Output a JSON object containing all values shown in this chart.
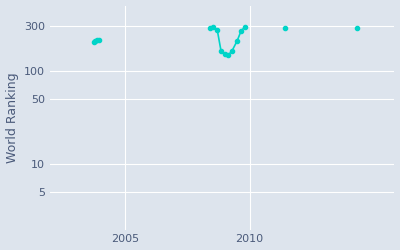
{
  "ylabel": "World Ranking",
  "bg_color": "#dde4ed",
  "line_color": "#00d4c8",
  "grid_color": "#ffffff",
  "data_segments": [
    {
      "x": [
        2003.75,
        2003.82,
        2003.88,
        2003.95
      ],
      "y": [
        205,
        210,
        215,
        212
      ]
    },
    {
      "x": [
        2008.4,
        2008.55,
        2008.7,
        2008.85,
        2009.0,
        2009.15,
        2009.3,
        2009.5,
        2009.65,
        2009.8
      ],
      "y": [
        288,
        292,
        275,
        165,
        150,
        148,
        165,
        210,
        265,
        295
      ]
    },
    {
      "x": [
        2011.4
      ],
      "y": [
        288
      ]
    },
    {
      "x": [
        2014.3
      ],
      "y": [
        290
      ]
    }
  ],
  "xlim": [
    2002.0,
    2015.8
  ],
  "ylim_log": [
    2,
    500
  ],
  "yticks": [
    5,
    10,
    50,
    100,
    300
  ],
  "xticks": [
    2005,
    2010
  ],
  "tick_fontsize": 8,
  "label_fontsize": 9,
  "marker_size": 3
}
